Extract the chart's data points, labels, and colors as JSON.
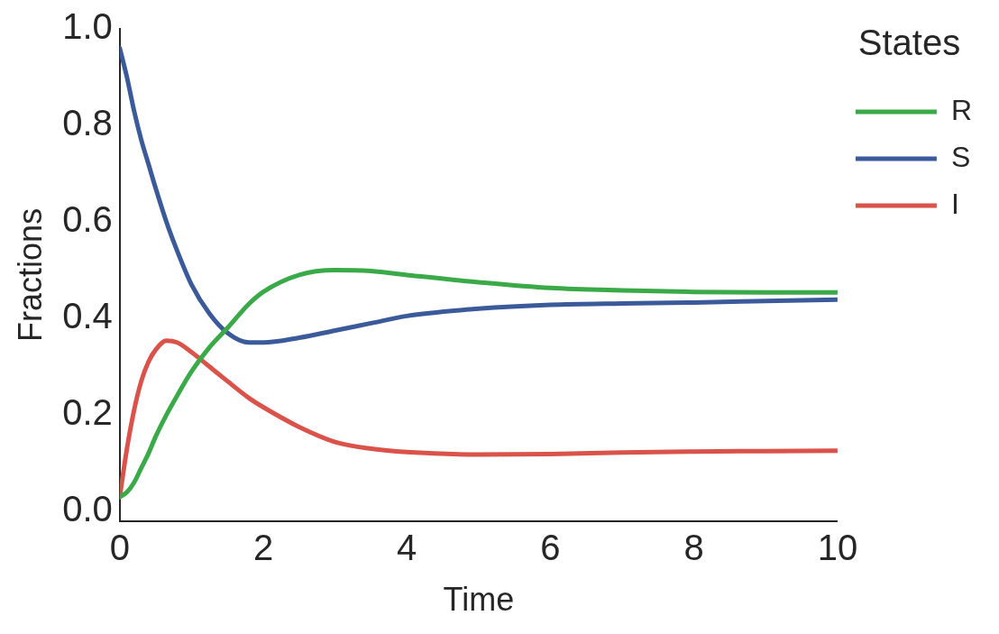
{
  "chart_data": {
    "type": "line",
    "xlabel": "Time",
    "ylabel": "Fractions",
    "legend_title": "States",
    "legend": "right",
    "grid": false,
    "marker": "none",
    "line_style": "solid",
    "xlim": [
      0,
      10
    ],
    "xticks": [
      0,
      2,
      4,
      6,
      8,
      10
    ],
    "ylim": [
      -0.02,
      1.0
    ],
    "yticks": [
      {
        "value": 0,
        "label": "0.0"
      },
      {
        "value": 0.2,
        "label": "0.2"
      },
      {
        "value": 0.4,
        "label": "0.4"
      },
      {
        "value": 0.6,
        "label": "0.6"
      },
      {
        "value": 0.8,
        "label": "0.8"
      },
      {
        "value": 1.0,
        "label": "1.0"
      }
    ],
    "x": [
      0,
      0.1,
      0.2,
      0.3,
      0.4,
      0.5,
      0.65,
      0.8,
      1,
      1.25,
      1.5,
      1.8,
      2,
      2.5,
      3,
      3.5,
      4,
      5,
      6,
      7,
      8,
      9,
      10
    ],
    "series": [
      {
        "name": "R",
        "color": "#3aaa48",
        "values": [
          0.03,
          0.04,
          0.06,
          0.09,
          0.12,
          0.155,
          0.2,
          0.24,
          0.29,
          0.34,
          0.38,
          0.43,
          0.455,
          0.49,
          0.5,
          0.498,
          0.49,
          0.475,
          0.463,
          0.458,
          0.455,
          0.454,
          0.454
        ]
      },
      {
        "name": "S",
        "color": "#3a5a9a",
        "values": [
          0.96,
          0.9,
          0.83,
          0.77,
          0.72,
          0.67,
          0.6,
          0.54,
          0.47,
          0.41,
          0.37,
          0.35,
          0.35,
          0.36,
          0.375,
          0.39,
          0.405,
          0.42,
          0.428,
          0.431,
          0.433,
          0.436,
          0.439
        ]
      },
      {
        "name": "I",
        "color": "#d9534a",
        "values": [
          0.03,
          0.13,
          0.21,
          0.27,
          0.31,
          0.335,
          0.354,
          0.35,
          0.33,
          0.3,
          0.27,
          0.235,
          0.216,
          0.175,
          0.144,
          0.13,
          0.123,
          0.118,
          0.119,
          0.122,
          0.124,
          0.125,
          0.126
        ]
      }
    ]
  }
}
